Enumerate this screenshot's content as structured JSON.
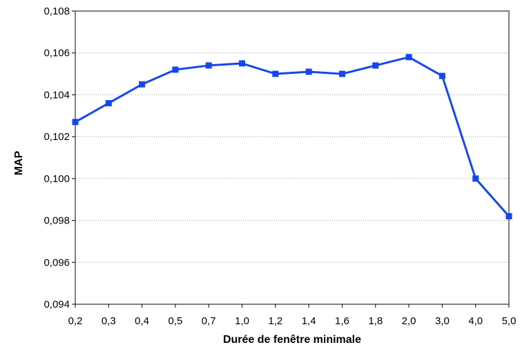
{
  "chart_data": {
    "type": "line",
    "title": "",
    "xlabel": "Durée de fenêtre minimale",
    "ylabel": "MAP",
    "categories": [
      "0,2",
      "0,3",
      "0,4",
      "0,5",
      "0,7",
      "1,0",
      "1,2",
      "1,4",
      "1,6",
      "1,8",
      "2,0",
      "3,0",
      "4,0",
      "5,0"
    ],
    "series": [
      {
        "values": [
          0.1027,
          0.1036,
          0.1045,
          0.1052,
          0.1054,
          0.1055,
          0.105,
          0.1051,
          0.105,
          0.1054,
          0.1058,
          0.1049,
          0.1,
          0.0982
        ],
        "color": "#1446f0",
        "marker": "square"
      }
    ],
    "ylim": [
      0.094,
      0.108
    ],
    "yticks": [
      "0,094",
      "0,096",
      "0,098",
      "0,100",
      "0,102",
      "0,104",
      "0,106",
      "0,108"
    ],
    "grid": true,
    "legend": "none"
  }
}
